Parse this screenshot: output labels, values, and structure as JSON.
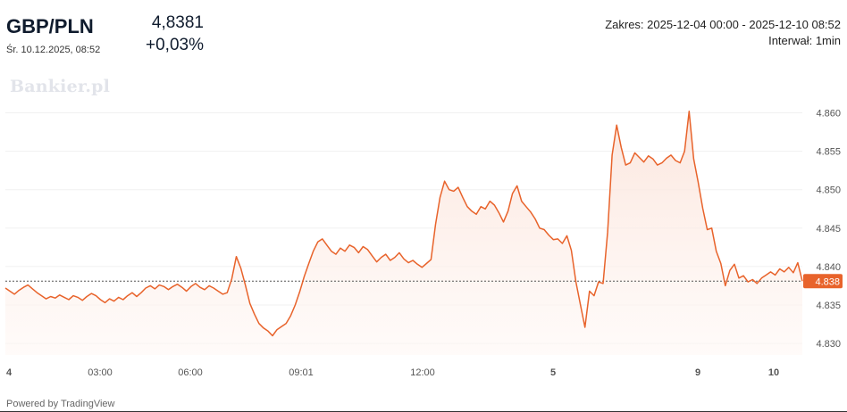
{
  "header": {
    "symbol": "GBP/PLN",
    "datetime": "Śr. 10.12.2025, 08:52",
    "price": "4,8381",
    "change": "+0,03%",
    "range": "Zakres: 2025-12-04 00:00 - 2025-12-10 08:52",
    "interval": "Interwał: 1min"
  },
  "watermark": "Bankier.pl",
  "footer": {
    "powered": "Powered by TradingView"
  },
  "colors": {
    "line": "#e8632b",
    "fill": "#fdeee8",
    "grid": "#f0f0f0",
    "label_bg": "#e8632b"
  },
  "chart_data": {
    "type": "area",
    "x_ticks": [
      {
        "label": "4",
        "bold": true
      },
      {
        "label": "03:00",
        "bold": false
      },
      {
        "label": "06:00",
        "bold": false
      },
      {
        "label": "09:01",
        "bold": false
      },
      {
        "label": "12:00",
        "bold": false
      },
      {
        "label": "5",
        "bold": true
      },
      {
        "label": "9",
        "bold": true
      },
      {
        "label": "10",
        "bold": true
      }
    ],
    "y_ticks": [
      "4.860",
      "4.855",
      "4.850",
      "4.845",
      "4.840",
      "4.835",
      "4.830"
    ],
    "ylim": [
      4.8285,
      4.8625
    ],
    "last_value": 4.8381,
    "last_label": "4.838",
    "grid": true,
    "series": [
      {
        "values": [
          4.8372,
          4.8368,
          4.8364,
          4.8369,
          4.8373,
          4.8376,
          4.8371,
          4.8366,
          4.8362,
          4.8358,
          4.8361,
          4.8359,
          4.8363,
          4.836,
          4.8357,
          4.8362,
          4.836,
          4.8356,
          4.8361,
          4.8365,
          4.8362,
          4.8357,
          4.8353,
          4.8358,
          4.8355,
          4.836,
          4.8357,
          4.8362,
          4.8366,
          4.8361,
          4.8366,
          4.8372,
          4.8375,
          4.8371,
          4.8376,
          4.8374,
          4.837,
          4.8374,
          4.8377,
          4.8373,
          4.8368,
          4.8374,
          4.8378,
          4.8373,
          4.837,
          4.8375,
          4.8372,
          4.8368,
          4.8364,
          4.8366,
          4.8384,
          4.8413,
          4.8398,
          4.8376,
          4.8352,
          4.8338,
          4.8326,
          4.832,
          4.8316,
          4.831,
          4.8318,
          4.8322,
          4.8326,
          4.8336,
          4.835,
          4.8367,
          4.8387,
          4.8404,
          4.842,
          4.8432,
          4.8436,
          4.8428,
          4.842,
          4.8416,
          4.8424,
          4.842,
          4.8428,
          4.8425,
          4.8418,
          4.8426,
          4.8422,
          4.8414,
          4.8406,
          4.8412,
          4.8416,
          4.8408,
          4.8412,
          4.8418,
          4.841,
          4.8405,
          4.8408,
          4.8403,
          4.8399,
          4.8404,
          4.8409,
          4.8455,
          4.849,
          4.8511,
          4.85,
          4.8498,
          4.8503,
          4.849,
          4.8478,
          4.8472,
          4.8468,
          4.8478,
          4.8475,
          4.8485,
          4.848,
          4.847,
          4.8458,
          4.8472,
          4.8495,
          4.8505,
          4.8485,
          4.8478,
          4.8471,
          4.8462,
          4.845,
          4.8448,
          4.8441,
          4.8435,
          4.8436,
          4.843,
          4.844,
          4.8421,
          4.838,
          4.835,
          4.8321,
          4.8368,
          4.8362,
          4.838,
          4.8378,
          4.8445,
          4.8545,
          4.8584,
          4.8555,
          4.8532,
          4.8535,
          4.8548,
          4.8542,
          4.8536,
          4.8544,
          4.854,
          4.8532,
          4.8535,
          4.8541,
          4.8545,
          4.8538,
          4.8535,
          4.855,
          4.8602,
          4.854,
          4.851,
          4.8476,
          4.8448,
          4.845,
          4.842,
          4.8404,
          4.8375,
          4.8395,
          4.8403,
          4.8385,
          4.8388,
          4.838,
          4.8383,
          4.8378,
          4.8385,
          4.8389,
          4.8393,
          4.8389,
          4.8397,
          4.8393,
          4.8399,
          4.8392,
          4.8405,
          4.8381
        ]
      }
    ]
  }
}
